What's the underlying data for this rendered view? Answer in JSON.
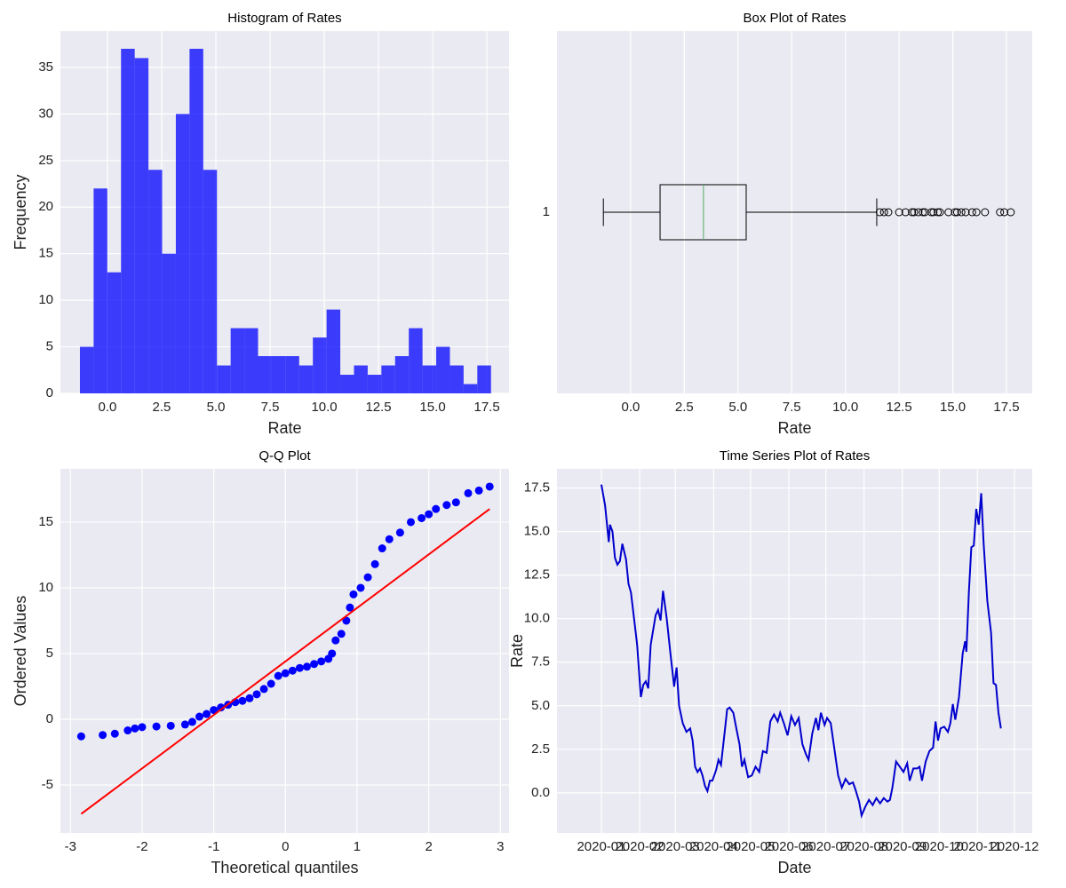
{
  "chart_data": [
    {
      "type": "histogram",
      "title": "Histogram of Rates",
      "xlabel": "Rate",
      "ylabel": "Frequency",
      "color": "blue",
      "alpha": 0.75,
      "grid": true,
      "bins": [
        -1.27,
        -0.638,
        -0.006,
        0.626,
        1.258,
        1.89,
        2.522,
        3.154,
        3.786,
        4.418,
        5.05,
        5.682,
        6.314,
        6.946,
        7.578,
        8.21,
        8.842,
        9.474,
        10.106,
        10.738,
        11.37,
        12.002,
        12.634,
        13.266,
        13.898,
        14.53,
        15.162,
        15.794,
        16.426,
        17.058,
        17.69
      ],
      "values": [
        5,
        22,
        13,
        37,
        36,
        24,
        15,
        30,
        37,
        24,
        3,
        7,
        7,
        4,
        4,
        4,
        3,
        6,
        9,
        2,
        3,
        2,
        3,
        4,
        7,
        3,
        5,
        3,
        1,
        3
      ],
      "xlim": [
        -2.17,
        18.52
      ],
      "ylim": [
        0,
        38.9
      ],
      "xticks": [
        {
          "value": 0,
          "label": "0.0"
        },
        2.5,
        {
          "value": 5,
          "label": "5.0"
        },
        7.5,
        {
          "value": 10,
          "label": "10.0"
        },
        12.5,
        {
          "value": 15,
          "label": "15.0"
        },
        17.5
      ],
      "yticks": [
        0,
        5,
        10,
        15,
        20,
        25,
        30,
        35
      ]
    },
    {
      "type": "box",
      "title": "Box Plot of Rates",
      "xlabel": "Rate",
      "grid": true,
      "categories": [
        "1"
      ],
      "color": "#000000",
      "median_color": "#55a868",
      "box": {
        "whislo": -1.27,
        "q1": 1.37,
        "med": 3.39,
        "q3": 5.38,
        "whishi": 11.46,
        "fliers": [
          11.6,
          11.8,
          12.0,
          12.5,
          12.8,
          13.1,
          13.2,
          13.4,
          13.6,
          13.7,
          14.0,
          14.1,
          14.3,
          14.4,
          14.8,
          15.1,
          15.2,
          15.4,
          15.6,
          15.9,
          16.1,
          16.5,
          17.2,
          17.4,
          17.7
        ]
      },
      "xlim": [
        -3.43,
        18.7
      ],
      "xticks": [
        {
          "value": 0,
          "label": "0.0"
        },
        2.5,
        {
          "value": 5,
          "label": "5.0"
        },
        7.5,
        {
          "value": 10,
          "label": "10.0"
        },
        12.5,
        {
          "value": 15,
          "label": "15.0"
        },
        17.5
      ]
    },
    {
      "type": "scatter",
      "title": "Q-Q Plot",
      "xlabel": "Theoretical quantiles",
      "ylabel": "Ordered Values",
      "color": "blue",
      "grid": true,
      "x": [
        -2.85,
        -2.55,
        -2.38,
        -2.2,
        -2.1,
        -2.0,
        -1.8,
        -1.6,
        -1.4,
        -1.3,
        -1.2,
        -1.1,
        -1.0,
        -0.9,
        -0.8,
        -0.7,
        -0.6,
        -0.5,
        -0.4,
        -0.3,
        -0.2,
        -0.1,
        0,
        0.1,
        0.2,
        0.3,
        0.4,
        0.5,
        0.6,
        0.65,
        0.7,
        0.78,
        0.85,
        0.9,
        0.95,
        1.05,
        1.15,
        1.25,
        1.35,
        1.45,
        1.6,
        1.75,
        1.9,
        2.0,
        2.1,
        2.25,
        2.38,
        2.55,
        2.7,
        2.85
      ],
      "values": [
        -1.3,
        -1.2,
        -1.1,
        -0.85,
        -0.7,
        -0.6,
        -0.55,
        -0.5,
        -0.4,
        -0.2,
        0.2,
        0.4,
        0.7,
        0.9,
        1.1,
        1.3,
        1.4,
        1.6,
        1.9,
        2.3,
        2.7,
        3.3,
        3.5,
        3.7,
        3.9,
        4.0,
        4.2,
        4.4,
        4.6,
        5.0,
        6.0,
        6.5,
        7.5,
        8.5,
        9.5,
        10.0,
        10.8,
        11.8,
        13.0,
        13.7,
        14.2,
        15.0,
        15.3,
        15.6,
        16.0,
        16.3,
        16.5,
        17.2,
        17.4,
        17.7
      ],
      "fit_line": {
        "color": "red",
        "x": [
          -2.85,
          2.85
        ],
        "values": [
          -7.2,
          16.0
        ]
      },
      "xlim": [
        -3.14,
        3.12
      ],
      "ylim": [
        -8.65,
        19.05
      ],
      "xticks": [
        -3,
        -2,
        -1,
        0,
        1,
        2,
        3
      ],
      "yticks": [
        -5,
        0,
        5,
        10,
        15
      ]
    },
    {
      "type": "line",
      "title": "Time Series Plot of Rates",
      "xlabel": "Date",
      "ylabel": "Rate",
      "color": "#0000cd",
      "grid": true,
      "x": [
        0,
        3,
        6,
        7,
        9,
        11,
        13,
        15,
        17,
        20,
        22,
        24,
        26,
        29,
        31,
        32,
        34,
        36,
        38,
        40,
        44,
        46,
        48,
        50,
        53,
        56,
        59,
        61,
        63,
        66,
        69,
        72,
        74,
        76,
        78,
        80,
        82,
        84,
        86,
        88,
        90,
        93,
        95,
        97,
        100,
        102,
        104,
        107,
        110,
        112,
        114,
        116,
        119,
        122,
        125,
        128,
        131,
        134,
        137,
        140,
        143,
        145,
        148,
        151,
        154,
        157,
        160,
        163,
        166,
        168,
        171,
        174,
        176,
        178,
        181,
        183,
        186,
        189,
        192,
        195,
        198,
        201,
        204,
        206,
        209,
        211,
        214,
        217,
        220,
        223,
        226,
        229,
        232,
        234,
        236,
        239,
        242,
        245,
        248,
        250,
        253,
        256,
        258,
        260,
        263,
        266,
        269,
        271,
        273,
        275,
        278,
        281,
        283,
        285,
        287,
        290,
        293,
        295,
        296,
        298,
        300,
        302,
        304,
        306,
        308,
        310,
        313,
        316,
        318,
        320,
        322,
        324
      ],
      "values": [
        17.7,
        16.5,
        14.4,
        15.4,
        15.0,
        13.5,
        13.1,
        13.3,
        14.3,
        13.4,
        12.0,
        11.5,
        10.3,
        8.5,
        6.5,
        5.5,
        6.2,
        6.4,
        6.0,
        8.5,
        10.2,
        10.5,
        9.9,
        11.6,
        10.0,
        8.0,
        6.1,
        7.2,
        5.0,
        4.0,
        3.5,
        3.7,
        3.0,
        1.5,
        1.2,
        1.4,
        1.0,
        0.4,
        0.1,
        0.7,
        0.7,
        1.3,
        1.9,
        1.6,
        3.5,
        4.8,
        4.9,
        4.6,
        3.5,
        2.8,
        1.5,
        1.9,
        0.9,
        1.0,
        1.5,
        1.2,
        2.4,
        2.3,
        4.1,
        4.5,
        4.1,
        4.6,
        4.0,
        3.3,
        4.4,
        3.9,
        4.3,
        2.8,
        2.2,
        1.9,
        3.4,
        4.3,
        3.6,
        4.6,
        3.9,
        4.3,
        4.0,
        2.5,
        1.0,
        0.3,
        0.8,
        0.5,
        0.6,
        0.2,
        -0.5,
        -1.3,
        -0.8,
        -0.4,
        -0.7,
        -0.3,
        -0.6,
        -0.3,
        -0.5,
        -0.4,
        0.3,
        1.8,
        1.5,
        1.2,
        1.7,
        0.7,
        1.4,
        1.4,
        1.5,
        0.7,
        1.8,
        2.4,
        2.6,
        4.1,
        3.0,
        3.7,
        3.8,
        3.5,
        4.0,
        5.1,
        4.2,
        5.5,
        8.0,
        8.7,
        8.1,
        11.5,
        14.1,
        14.2,
        16.3,
        15.4,
        17.2,
        14.3,
        11.0,
        9.2,
        6.3,
        6.2,
        4.6,
        3.7
      ],
      "xlim": [
        -36,
        349.4
      ],
      "ylim": [
        -2.3,
        18.6
      ],
      "xticks": [
        {
          "value": 0,
          "label": "2020-01"
        },
        {
          "value": 31,
          "label": "2020-02"
        },
        {
          "value": 60,
          "label": "2020-03"
        },
        {
          "value": 91,
          "label": "2020-04"
        },
        {
          "value": 121,
          "label": "2020-05"
        },
        {
          "value": 152,
          "label": "2020-06"
        },
        {
          "value": 182,
          "label": "2020-07"
        },
        {
          "value": 213,
          "label": "2020-08"
        },
        {
          "value": 244,
          "label": "2020-09"
        },
        {
          "value": 274,
          "label": "2020-10"
        },
        {
          "value": 305,
          "label": "2020-11"
        },
        {
          "value": 335,
          "label": "2020-12"
        }
      ],
      "yticks": [
        {
          "value": 0,
          "label": "0.0"
        },
        2.5,
        {
          "value": 5,
          "label": "5.0"
        },
        7.5,
        {
          "value": 10,
          "label": "10.0"
        },
        12.5,
        {
          "value": 15,
          "label": "15.0"
        },
        17.5
      ]
    }
  ]
}
